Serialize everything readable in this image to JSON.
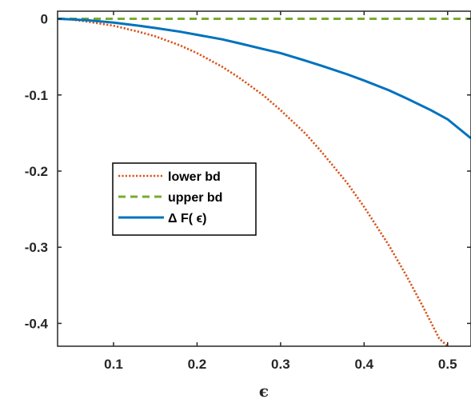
{
  "chart_data": {
    "type": "line",
    "title": "",
    "xlabel": "ϵ",
    "ylabel": "",
    "xlim": [
      0.033,
      0.528
    ],
    "ylim": [
      -0.43,
      0.01
    ],
    "x_ticks": [
      0.1,
      0.2,
      0.3,
      0.4,
      0.5
    ],
    "x_tick_labels": [
      "0.1",
      "0.2",
      "0.3",
      "0.4",
      "0.5"
    ],
    "y_ticks": [
      0,
      -0.1,
      -0.2,
      -0.3,
      -0.4
    ],
    "y_tick_labels": [
      "0",
      "-0.1",
      "-0.2",
      "-0.3",
      "-0.4"
    ],
    "grid": false,
    "legend_position": "center-left",
    "series": [
      {
        "name": "lower bd",
        "color": "#D95319",
        "style": "dotted",
        "x": [
          0.033,
          0.05,
          0.07,
          0.1,
          0.13,
          0.15,
          0.18,
          0.2,
          0.23,
          0.25,
          0.28,
          0.3,
          0.33,
          0.35,
          0.38,
          0.4,
          0.43,
          0.45,
          0.47,
          0.49,
          0.5
        ],
        "y": [
          0.0,
          -0.001,
          -0.004,
          -0.009,
          -0.017,
          -0.023,
          -0.035,
          -0.045,
          -0.063,
          -0.077,
          -0.101,
          -0.12,
          -0.151,
          -0.176,
          -0.216,
          -0.247,
          -0.298,
          -0.336,
          -0.377,
          -0.42,
          -0.43
        ]
      },
      {
        "name": "upper bd",
        "color": "#77AC30",
        "style": "dashed",
        "x": [
          0.033,
          0.528
        ],
        "y": [
          0.0,
          0.0
        ]
      },
      {
        "name": "Δ F( ϵ)",
        "color": "#0072BD",
        "style": "solid",
        "x": [
          0.033,
          0.05,
          0.07,
          0.1,
          0.13,
          0.15,
          0.18,
          0.2,
          0.23,
          0.25,
          0.28,
          0.3,
          0.33,
          0.35,
          0.38,
          0.4,
          0.43,
          0.45,
          0.48,
          0.5,
          0.528
        ],
        "y": [
          0.0,
          -0.0007,
          -0.002,
          -0.005,
          -0.009,
          -0.012,
          -0.017,
          -0.021,
          -0.027,
          -0.032,
          -0.04,
          -0.045,
          -0.055,
          -0.062,
          -0.073,
          -0.081,
          -0.094,
          -0.104,
          -0.12,
          -0.132,
          -0.157
        ]
      }
    ]
  }
}
